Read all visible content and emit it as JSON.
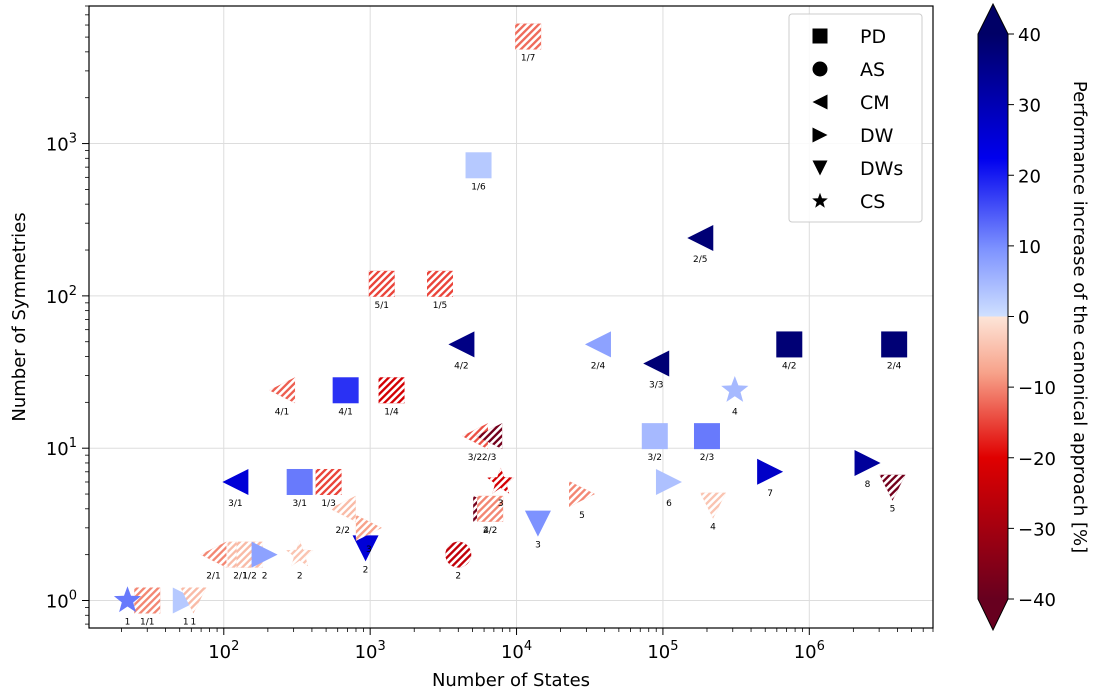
{
  "chart_data": {
    "type": "scatter",
    "xlabel": "Number of States",
    "ylabel": "Number of Symmetries",
    "xscale": "log",
    "yscale": "log",
    "xlim": [
      12,
      7000000
    ],
    "ylim": [
      0.66,
      8000
    ],
    "grid": true,
    "x_tick_labels": [
      "10^2",
      "10^3",
      "10^4",
      "10^5",
      "10^6"
    ],
    "x_ticks": [
      100,
      1000,
      10000,
      100000,
      1000000
    ],
    "y_tick_labels": [
      "10^0",
      "10^1",
      "10^2",
      "10^3"
    ],
    "y_ticks": [
      1,
      10,
      100,
      1000
    ],
    "legend": {
      "placement": "top-right",
      "entries": [
        {
          "marker": "square",
          "label": "PD"
        },
        {
          "marker": "circle",
          "label": "AS"
        },
        {
          "marker": "triangle-left",
          "label": "CM"
        },
        {
          "marker": "triangle-right",
          "label": "DW"
        },
        {
          "marker": "triangle-down",
          "label": "DWs"
        },
        {
          "marker": "star",
          "label": "CS"
        }
      ]
    },
    "colorbar": {
      "label": "Performance increase of the canonical approach [%]",
      "range": [
        -40,
        40
      ],
      "ticks": [
        -40,
        -30,
        -20,
        -10,
        0,
        10,
        20,
        30,
        40
      ],
      "tick_labels": [
        "−40",
        "−30",
        "−20",
        "−10",
        "0",
        "10",
        "20",
        "30",
        "40"
      ],
      "extend": "both",
      "colors": [
        "#67001f",
        "#e00000",
        "#f7a28a",
        "#fde5d8",
        "#cfe0ff",
        "#7d92ff",
        "#0000ee",
        "#000066"
      ]
    },
    "points": [
      {
        "m": "square",
        "x": 30,
        "y": 1,
        "v": -10,
        "h": true,
        "label": "1/1"
      },
      {
        "m": "star",
        "x": 22,
        "y": 1,
        "v": 12,
        "h": false,
        "label": "1"
      },
      {
        "m": "triangle-right",
        "x": 55,
        "y": 1,
        "v": 3,
        "h": false,
        "label": "1"
      },
      {
        "m": "triangle-down",
        "x": 62,
        "y": 1,
        "v": -5,
        "h": true,
        "label": "1"
      },
      {
        "m": "triangle-left",
        "x": 85,
        "y": 2,
        "v": -10,
        "h": true,
        "label": "2/1"
      },
      {
        "m": "square",
        "x": 130,
        "y": 2,
        "v": -5,
        "h": true,
        "label": "2/1"
      },
      {
        "m": "square",
        "x": 150,
        "y": 2,
        "v": -5,
        "h": true,
        "label": "1/2"
      },
      {
        "m": "triangle-right",
        "x": 190,
        "y": 2,
        "v": 8,
        "h": false,
        "label": "2"
      },
      {
        "m": "star",
        "x": 330,
        "y": 2,
        "v": -4,
        "h": true,
        "label": "2"
      },
      {
        "m": "triangle-down",
        "x": 930,
        "y": 2.2,
        "v": 25,
        "h": false,
        "label": "2"
      },
      {
        "m": "circle",
        "x": 4000,
        "y": 2,
        "v": -25,
        "h": true,
        "label": "2"
      },
      {
        "m": "triangle-left",
        "x": 120,
        "y": 6,
        "v": 25,
        "h": false,
        "label": "3/1"
      },
      {
        "m": "square",
        "x": 330,
        "y": 6,
        "v": 12,
        "h": false,
        "label": "3/1"
      },
      {
        "m": "square",
        "x": 520,
        "y": 6,
        "v": -15,
        "h": true,
        "label": "1/3"
      },
      {
        "m": "triangle-left",
        "x": 650,
        "y": 4,
        "v": -5,
        "h": true,
        "label": "2/2"
      },
      {
        "m": "triangle-right",
        "x": 980,
        "y": 3,
        "v": -8,
        "h": true,
        "label": "3"
      },
      {
        "m": "triangle-right",
        "x": 6200,
        "y": 4,
        "v": -38,
        "h": true,
        "label": "4"
      },
      {
        "m": "square",
        "x": 6600,
        "y": 4,
        "v": -10,
        "h": true,
        "label": "2/2"
      },
      {
        "m": "star",
        "x": 7800,
        "y": 6,
        "v": -22,
        "h": true,
        "label": "3"
      },
      {
        "m": "triangle-down",
        "x": 14000,
        "y": 3.2,
        "v": 10,
        "h": false,
        "label": "3"
      },
      {
        "m": "triangle-right",
        "x": 28000,
        "y": 5,
        "v": -10,
        "h": true,
        "label": "5"
      },
      {
        "m": "triangle-right",
        "x": 110000,
        "y": 6,
        "v": 4,
        "h": false,
        "label": "6"
      },
      {
        "m": "triangle-down",
        "x": 220000,
        "y": 4.2,
        "v": -4,
        "h": true,
        "label": "4"
      },
      {
        "m": "triangle-right",
        "x": 540000,
        "y": 7,
        "v": 27,
        "h": false,
        "label": "7"
      },
      {
        "m": "triangle-right",
        "x": 2500000,
        "y": 8,
        "v": 33,
        "h": false,
        "label": "8"
      },
      {
        "m": "triangle-down",
        "x": 3700000,
        "y": 5.5,
        "v": -38,
        "h": true,
        "label": "5"
      },
      {
        "m": "triangle-left",
        "x": 5200,
        "y": 12,
        "v": -14,
        "h": true,
        "label": "3/2"
      },
      {
        "m": "triangle-left",
        "x": 6500,
        "y": 12,
        "v": -38,
        "h": true,
        "label": "2/3"
      },
      {
        "m": "square",
        "x": 88000,
        "y": 12,
        "v": 5,
        "h": false,
        "label": "3/2"
      },
      {
        "m": "square",
        "x": 200000,
        "y": 12,
        "v": 12,
        "h": false,
        "label": "2/3"
      },
      {
        "m": "triangle-left",
        "x": 250,
        "y": 24,
        "v": -13,
        "h": true,
        "label": "4/1"
      },
      {
        "m": "square",
        "x": 680,
        "y": 24,
        "v": 18,
        "h": false,
        "label": "4/1"
      },
      {
        "m": "square",
        "x": 1400,
        "y": 24,
        "v": -22,
        "h": true,
        "label": "1/4"
      },
      {
        "m": "star",
        "x": 310000,
        "y": 24,
        "v": 5,
        "h": false,
        "label": "4"
      },
      {
        "m": "triangle-left",
        "x": 4200,
        "y": 48,
        "v": 36,
        "h": false,
        "label": "4/2"
      },
      {
        "m": "triangle-left",
        "x": 36000,
        "y": 48,
        "v": 8,
        "h": false,
        "label": "2/4"
      },
      {
        "m": "triangle-left",
        "x": 90000,
        "y": 36,
        "v": 38,
        "h": false,
        "label": "3/3"
      },
      {
        "m": "square",
        "x": 730000,
        "y": 48,
        "v": 38,
        "h": false,
        "label": "4/2"
      },
      {
        "m": "square",
        "x": 3800000,
        "y": 48,
        "v": 38,
        "h": false,
        "label": "2/4"
      },
      {
        "m": "square",
        "x": 1200,
        "y": 120,
        "v": -15,
        "h": true,
        "label": "5/1"
      },
      {
        "m": "square",
        "x": 3000,
        "y": 120,
        "v": -15,
        "h": true,
        "label": "1/5"
      },
      {
        "m": "triangle-left",
        "x": 180000,
        "y": 240,
        "v": 38,
        "h": false,
        "label": "2/5"
      },
      {
        "m": "square",
        "x": 5500,
        "y": 720,
        "v": 3,
        "h": false,
        "label": "1/6"
      },
      {
        "m": "square",
        "x": 12000,
        "y": 5040,
        "v": -12,
        "h": true,
        "label": "1/7"
      }
    ]
  }
}
